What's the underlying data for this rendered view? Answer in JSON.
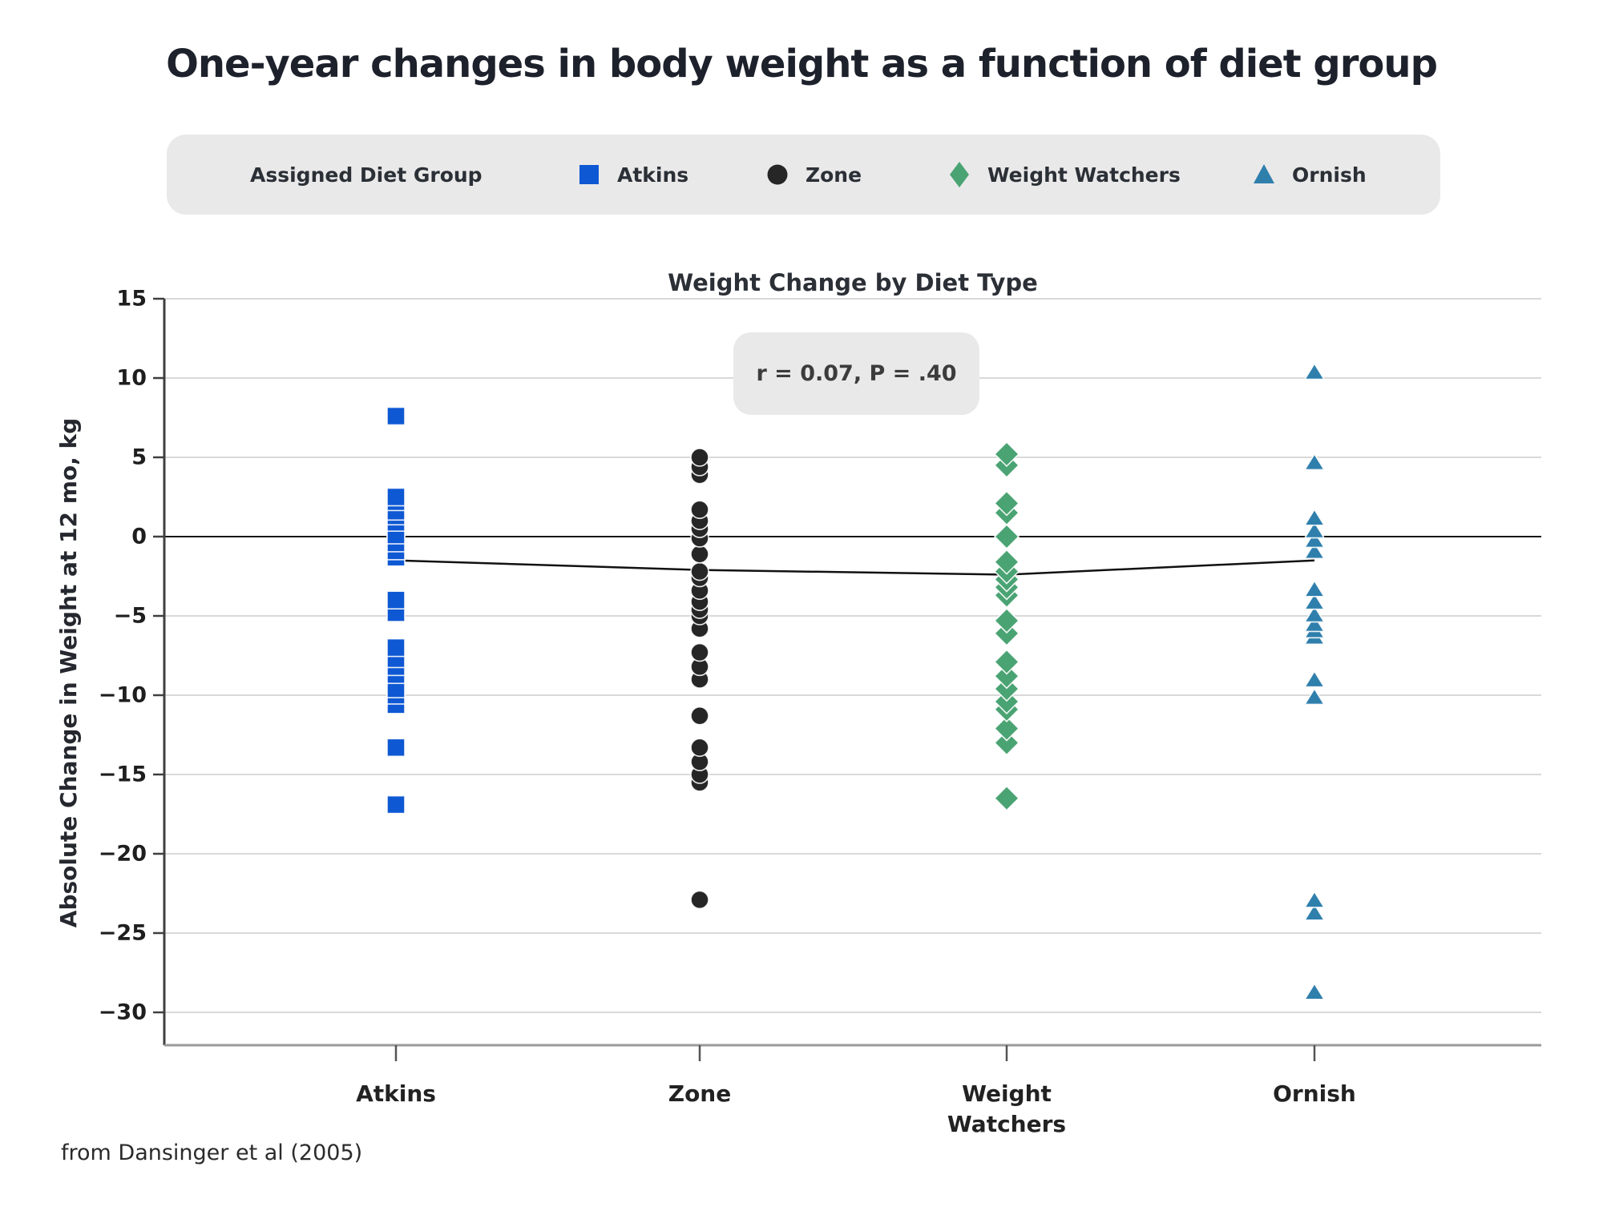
{
  "page": {
    "title": "One-year changes in body weight as a function of diet group",
    "footer": "from Dansinger et al (2005)"
  },
  "legend": {
    "label": "Assigned Diet Group",
    "items": [
      {
        "name": "Atkins",
        "marker": "square-icon",
        "color": "#0e58d3"
      },
      {
        "name": "Zone",
        "marker": "circle-icon",
        "color": "#262626"
      },
      {
        "name": "Weight Watchers",
        "marker": "diamond-icon",
        "color": "#4aa373"
      },
      {
        "name": "Ornish",
        "marker": "triangle-icon",
        "color": "#2f7fad"
      }
    ]
  },
  "chart_data": {
    "type": "scatter",
    "title": "Weight Change by Diet Type",
    "xlabel": "",
    "ylabel": "Absolute Change in Weight at 12  mo, kg",
    "annotation": "r = 0.07, P = .40",
    "ylim": [
      -32,
      15
    ],
    "yticks": [
      15,
      10,
      5,
      0,
      -5,
      -10,
      -15,
      -20,
      -25,
      -30
    ],
    "zero_line_value": 0,
    "grid": true,
    "legend_position": "top",
    "categories": [
      "Atkins",
      "Zone",
      "Weight Watchers",
      "Ornish"
    ],
    "x_tick_labels": [
      [
        "Atkins"
      ],
      [
        "Zone"
      ],
      [
        "Weight",
        "Watchers"
      ],
      [
        "Ornish"
      ]
    ],
    "series": [
      {
        "name": "Atkins",
        "marker": "square",
        "color": "#0e58d3",
        "values": [
          7.6,
          2.5,
          2.2,
          1.6,
          1.3,
          0.9,
          0.1,
          -0.4,
          -0.9,
          -1.3,
          -4.0,
          -4.8,
          -7.0,
          -7.7,
          -8.2,
          -8.7,
          -9.6,
          -10.0,
          -10.6,
          -13.3,
          -16.9
        ]
      },
      {
        "name": "Zone",
        "marker": "circle",
        "color": "#262626",
        "values": [
          5.0,
          4.4,
          3.9,
          1.7,
          1.0,
          0.5,
          -0.1,
          -1.1,
          -2.2,
          -2.6,
          -3.4,
          -4.1,
          -4.6,
          -5.0,
          -5.8,
          -7.3,
          -8.2,
          -9.0,
          -11.3,
          -13.3,
          -14.2,
          -15.0,
          -15.5,
          -22.9
        ]
      },
      {
        "name": "Weight Watchers",
        "marker": "diamond",
        "color": "#4aa373",
        "values": [
          5.2,
          4.5,
          2.1,
          1.5,
          0.0,
          -1.6,
          -2.2,
          -2.7,
          -3.2,
          -3.7,
          -5.3,
          -6.1,
          -7.9,
          -8.8,
          -9.6,
          -10.4,
          -10.9,
          -12.1,
          -13.0,
          -16.5
        ]
      },
      {
        "name": "Ornish",
        "marker": "triangle",
        "color": "#2f7fad",
        "values": [
          10.4,
          4.7,
          1.2,
          0.4,
          -0.2,
          -0.9,
          -3.3,
          -4.1,
          -4.9,
          -5.5,
          -5.9,
          -6.3,
          -9.0,
          -10.1,
          -22.9,
          -23.7,
          -28.7
        ]
      }
    ],
    "trend_line": {
      "name": "group-mean-trend",
      "color": "#111111",
      "values": [
        -1.5,
        -2.1,
        -2.4,
        -1.5
      ]
    }
  }
}
